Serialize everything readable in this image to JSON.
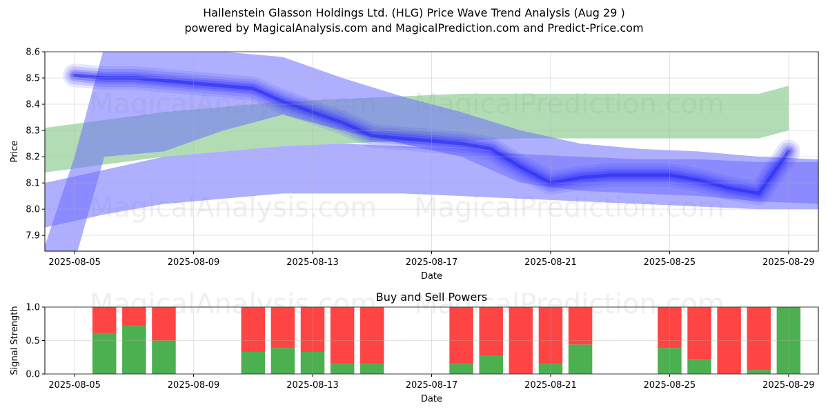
{
  "title_line1": "Hallenstein Glasson Holdings Ltd. (HLG) Price Wave Trend Analysis (Aug 29 )",
  "title_line2": "powered by MagicalAnalysis.com and MagicalPrediction.com and Predict-Price.com",
  "watermarks": [
    "MagicalAnalysis.com",
    "MagicalPrediction.com"
  ],
  "colors": {
    "up": "#4caf50",
    "down": "#ff4444",
    "band_blue": "#6e6eff",
    "band_green": "#66bb6a",
    "core_blue": "#3333ff"
  },
  "chart_data": [
    {
      "type": "area",
      "title": "",
      "xlabel": "Date",
      "ylabel": "Price",
      "xlim": [
        "2025-08-04",
        "2025-08-30"
      ],
      "ylim": [
        7.84,
        8.6
      ],
      "yticks": [
        "7.9",
        "8.0",
        "8.1",
        "8.2",
        "8.3",
        "8.4",
        "8.5",
        "8.6"
      ],
      "xticks": [
        "2025-08-05",
        "2025-08-09",
        "2025-08-13",
        "2025-08-17",
        "2025-08-21",
        "2025-08-25",
        "2025-08-29"
      ],
      "grid": true,
      "series": [
        {
          "color": "green",
          "x": [
            "2025-08-04",
            "2025-08-06",
            "2025-08-08",
            "2025-08-10",
            "2025-08-12",
            "2025-08-14",
            "2025-08-16",
            "2025-08-18",
            "2025-08-20",
            "2025-08-22",
            "2025-08-24",
            "2025-08-26",
            "2025-08-28",
            "2025-08-29"
          ],
          "upper": [
            8.31,
            8.34,
            8.37,
            8.39,
            8.41,
            8.42,
            8.43,
            8.44,
            8.44,
            8.44,
            8.44,
            8.44,
            8.44,
            8.47
          ],
          "lower": [
            8.14,
            8.17,
            8.2,
            8.22,
            8.24,
            8.25,
            8.26,
            8.26,
            8.27,
            8.27,
            8.27,
            8.27,
            8.27,
            8.3
          ]
        },
        {
          "color": "blue",
          "x": [
            "2025-08-04",
            "2025-08-06",
            "2025-08-08",
            "2025-08-10",
            "2025-08-12",
            "2025-08-14",
            "2025-08-16",
            "2025-08-18",
            "2025-08-20",
            "2025-08-22",
            "2025-08-24",
            "2025-08-26",
            "2025-08-28",
            "2025-08-30"
          ],
          "upper": [
            8.1,
            8.15,
            8.2,
            8.22,
            8.24,
            8.25,
            8.24,
            8.23,
            8.21,
            8.2,
            8.19,
            8.19,
            8.18,
            8.18
          ],
          "lower": [
            7.93,
            7.98,
            8.02,
            8.04,
            8.06,
            8.06,
            8.06,
            8.05,
            8.04,
            8.03,
            8.02,
            8.01,
            8.0,
            8.0
          ]
        },
        {
          "color": "blue",
          "x": [
            "2025-08-04",
            "2025-08-05",
            "2025-08-06",
            "2025-08-08",
            "2025-08-10",
            "2025-08-12",
            "2025-08-14",
            "2025-08-16",
            "2025-08-18",
            "2025-08-20",
            "2025-08-22",
            "2025-08-24",
            "2025-08-26",
            "2025-08-28",
            "2025-08-30"
          ],
          "upper": [
            7.86,
            8.2,
            8.62,
            8.6,
            8.6,
            8.58,
            8.5,
            8.43,
            8.37,
            8.3,
            8.25,
            8.23,
            8.22,
            8.2,
            8.19
          ],
          "lower": [
            7.74,
            7.8,
            8.2,
            8.22,
            8.3,
            8.36,
            8.3,
            8.25,
            8.2,
            8.1,
            8.07,
            8.06,
            8.05,
            8.03,
            8.02
          ]
        }
      ],
      "prediction_line": {
        "x": [
          "2025-08-05",
          "2025-08-06",
          "2025-08-07",
          "2025-08-08",
          "2025-08-09",
          "2025-08-10",
          "2025-08-11",
          "2025-08-12",
          "2025-08-13",
          "2025-08-14",
          "2025-08-15",
          "2025-08-16",
          "2025-08-17",
          "2025-08-18",
          "2025-08-19",
          "2025-08-20",
          "2025-08-21",
          "2025-08-22",
          "2025-08-23",
          "2025-08-24",
          "2025-08-25",
          "2025-08-26",
          "2025-08-27",
          "2025-08-28",
          "2025-08-29"
        ],
        "y": [
          8.51,
          8.5,
          8.5,
          8.49,
          8.48,
          8.47,
          8.46,
          8.41,
          8.37,
          8.33,
          8.28,
          8.27,
          8.26,
          8.25,
          8.23,
          8.16,
          8.1,
          8.12,
          8.13,
          8.13,
          8.13,
          8.11,
          8.08,
          8.06,
          8.22
        ]
      }
    },
    {
      "type": "bar",
      "title": "Buy and Sell Powers",
      "xlabel": "Date",
      "ylabel": "Signal Strength",
      "xlim": [
        "2025-08-04",
        "2025-08-30"
      ],
      "ylim": [
        0,
        1
      ],
      "yticks": [
        "0.0",
        "0.5",
        "1.0"
      ],
      "xticks": [
        "2025-08-05",
        "2025-08-09",
        "2025-08-13",
        "2025-08-17",
        "2025-08-21",
        "2025-08-25",
        "2025-08-29"
      ],
      "grid": true,
      "categories": [
        "2025-08-06",
        "2025-08-07",
        "2025-08-08",
        "2025-08-11",
        "2025-08-12",
        "2025-08-13",
        "2025-08-14",
        "2025-08-15",
        "2025-08-18",
        "2025-08-19",
        "2025-08-20",
        "2025-08-21",
        "2025-08-22",
        "2025-08-25",
        "2025-08-26",
        "2025-08-27",
        "2025-08-28",
        "2025-08-29"
      ],
      "series": [
        {
          "color": "green",
          "values": [
            0.61,
            0.72,
            0.5,
            0.33,
            0.39,
            0.33,
            0.16,
            0.16,
            0.16,
            0.27,
            0.0,
            0.16,
            0.44,
            0.39,
            0.22,
            0.0,
            0.06,
            1.0
          ]
        },
        {
          "color": "red",
          "values": [
            0.39,
            0.28,
            0.5,
            0.67,
            0.61,
            0.67,
            0.84,
            0.84,
            0.84,
            0.73,
            1.0,
            0.84,
            0.56,
            0.61,
            0.78,
            1.0,
            0.94,
            0.0
          ]
        }
      ]
    }
  ]
}
